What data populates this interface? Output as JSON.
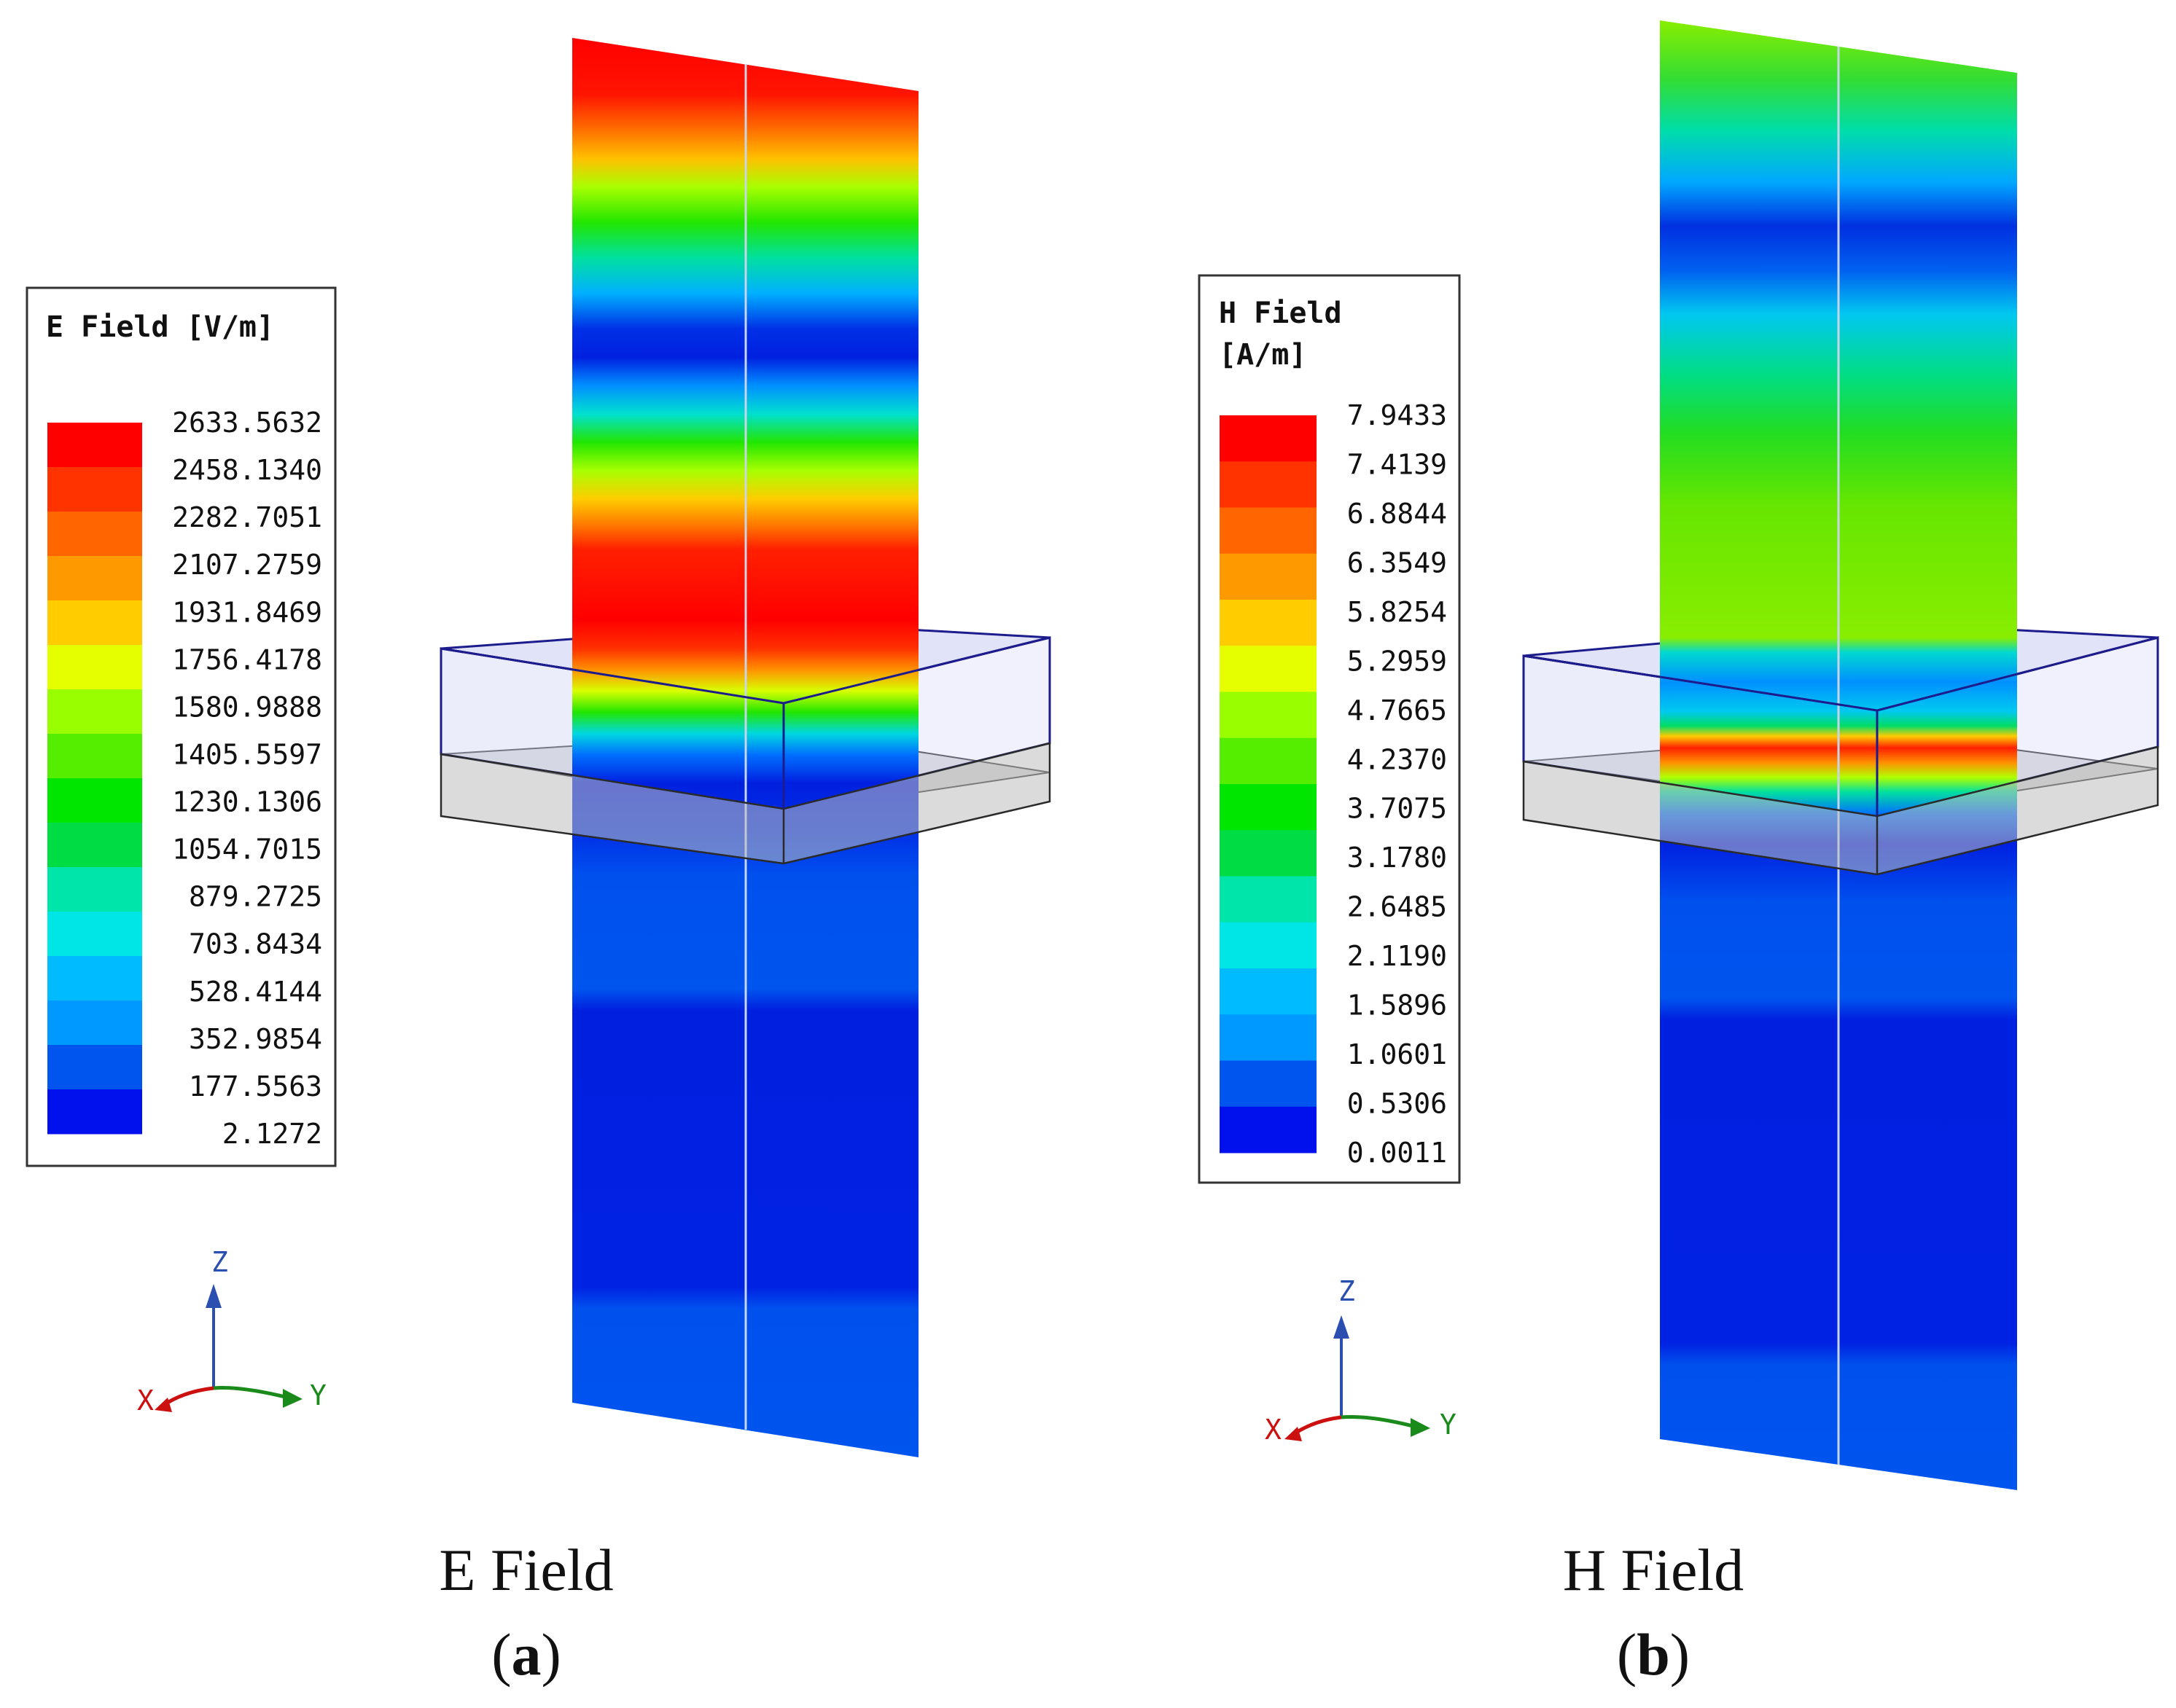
{
  "panels": [
    {
      "id": "a",
      "legend": {
        "title_lines": [
          "E Field [V/m]"
        ],
        "values": [
          "2633.5632",
          "2458.1340",
          "2282.7051",
          "2107.2759",
          "1931.8469",
          "1756.4178",
          "1580.9888",
          "1405.5597",
          "1230.1306",
          "1054.7015",
          "879.2725",
          "703.8434",
          "528.4144",
          "352.9854",
          "177.5563",
          "2.1272"
        ]
      },
      "caption": "E Field",
      "sub_label": "a",
      "axes": {
        "z": "Z",
        "y": "Y",
        "x": "X"
      }
    },
    {
      "id": "b",
      "legend": {
        "title_lines": [
          "H Field",
          "[A/m]"
        ],
        "values": [
          "7.9433",
          "7.4139",
          "6.8844",
          "6.3549",
          "5.8254",
          "5.2959",
          "4.7665",
          "4.2370",
          "3.7075",
          "3.1780",
          "2.6485",
          "2.1190",
          "1.5896",
          "1.0601",
          "0.5306",
          "0.0011"
        ]
      },
      "caption": "H Field",
      "sub_label": "b",
      "axes": {
        "z": "Z",
        "y": "Y",
        "x": "X"
      }
    }
  ],
  "colors": {
    "scale": [
      "#ff0000",
      "#ff3300",
      "#ff6600",
      "#ff9900",
      "#ffcc00",
      "#e5ff00",
      "#99ff00",
      "#55ee00",
      "#00e600",
      "#00dd44",
      "#00e5aa",
      "#00e5e5",
      "#00bbff",
      "#0099ff",
      "#0055ee",
      "#0011ee"
    ],
    "box_top": "#c9ccf2",
    "box_edge": "#1c1c8c",
    "box_lower": "#bdbdbd",
    "axis_z": "#2b4fb0",
    "axis_y": "#1a8a1a",
    "axis_x": "#cc1010"
  }
}
